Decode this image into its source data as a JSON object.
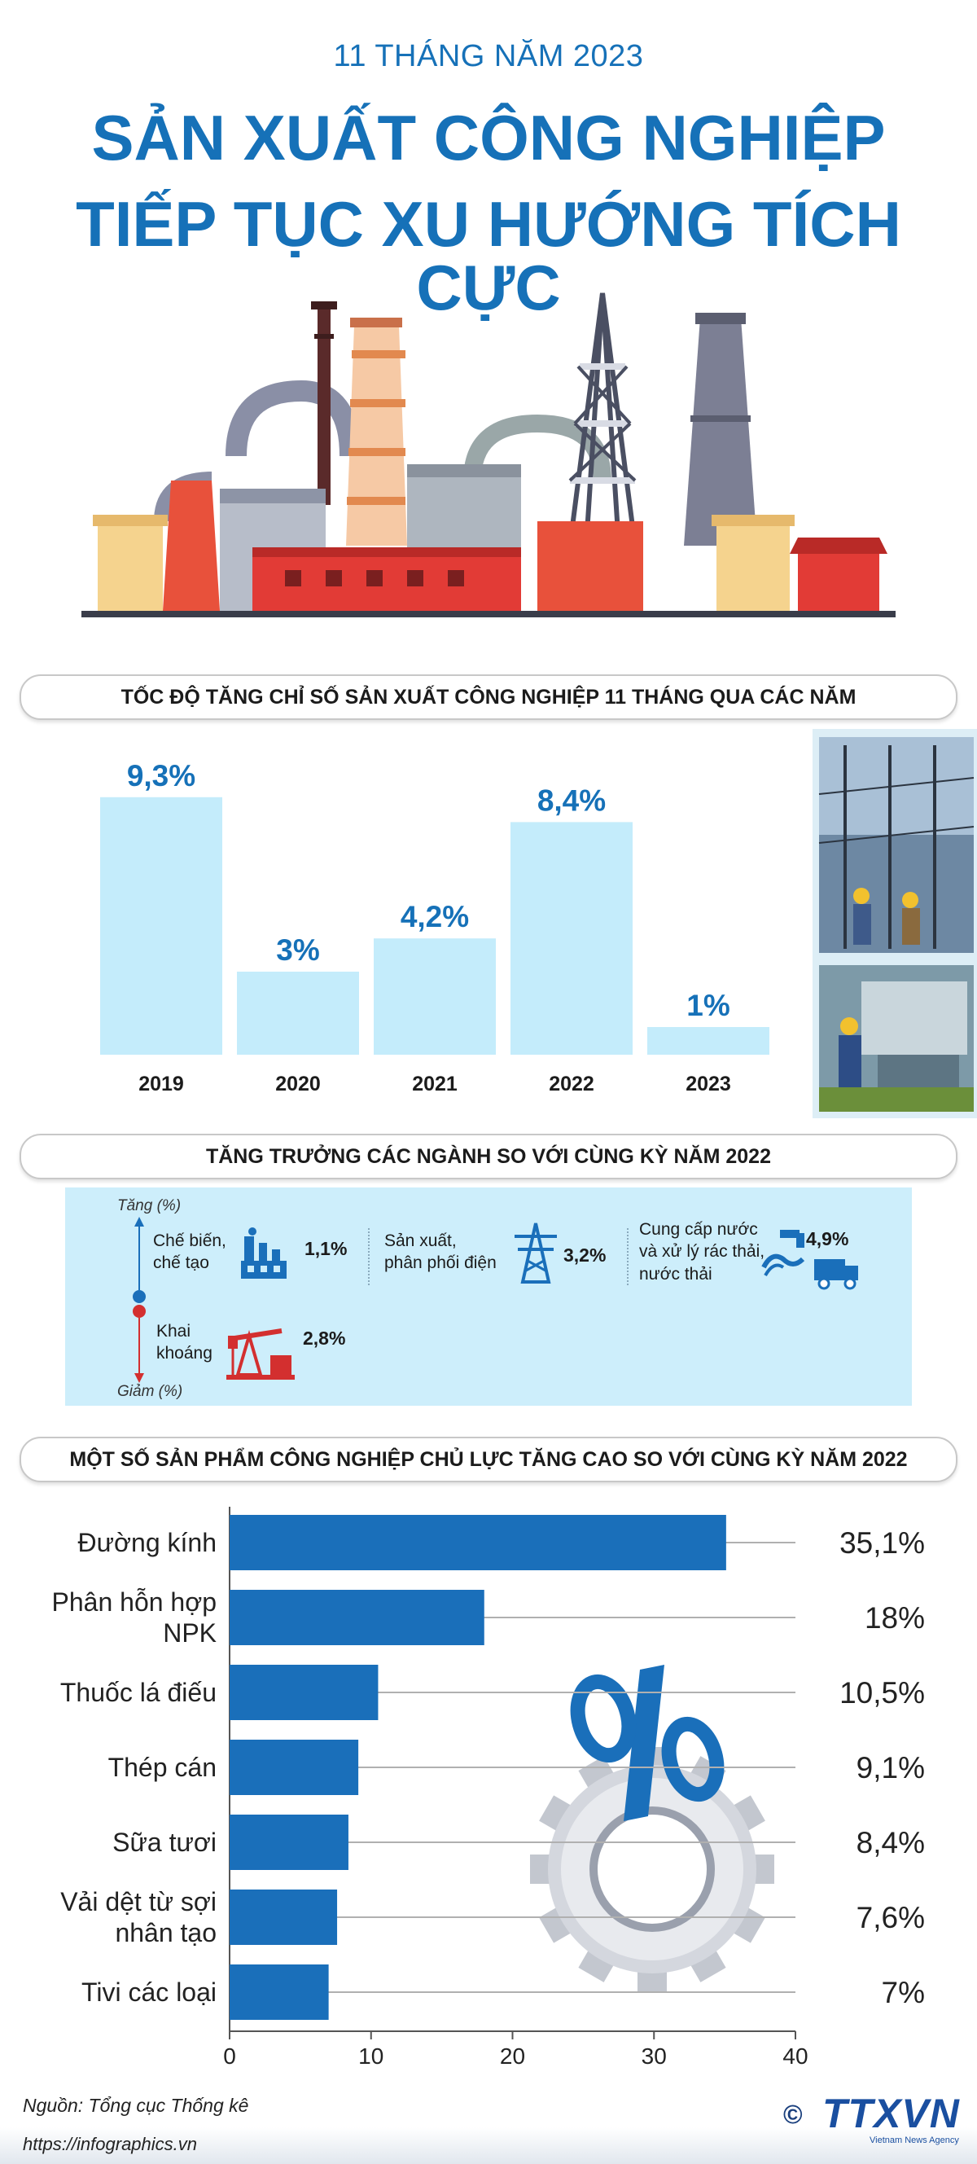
{
  "header": {
    "kicker": "11 THÁNG NĂM 2023",
    "title_line1": "SẢN XUẤT CÔNG NGHIỆP",
    "title_line2": "TIẾP TỤC XU HƯỚNG TÍCH CỰC"
  },
  "section1": {
    "title": "TỐC ĐỘ TĂNG CHỈ SỐ SẢN XUẤT CÔNG NGHIỆP 11 THÁNG QUA CÁC NĂM"
  },
  "section2": {
    "title": "TĂNG TRƯỞNG CÁC NGÀNH SO VỚI CÙNG KỲ NĂM 2022",
    "up_label": "Tăng (%)",
    "down_label": "Giảm (%)",
    "sectors": [
      {
        "name_line1": "Chế biến,",
        "name_line2": "chế tạo",
        "value": "1,1%",
        "icon": "factory-icon"
      },
      {
        "name_line1": "Sản xuất,",
        "name_line2": "phân phối điện",
        "value": "3,2%",
        "icon": "power-tower-icon"
      },
      {
        "name_line1": "Cung cấp nước",
        "name_line2": "và xử lý rác thải,",
        "name_line3": "nước thải",
        "value": "4,9%",
        "icon": "water-truck-icon"
      },
      {
        "name_line1": "Khai",
        "name_line2": "khoáng",
        "value": "2,8%",
        "icon": "oil-pump-icon"
      }
    ]
  },
  "section3": {
    "title": "MỘT SỐ SẢN PHẨM CÔNG NGHIỆP CHỦ LỰC TĂNG CAO SO VỚI CÙNG KỲ NĂM 2022"
  },
  "chart_data": [
    {
      "type": "bar",
      "title": "TỐC ĐỘ TĂNG CHỈ SỐ SẢN XUẤT CÔNG NGHIỆP 11 THÁNG QUA CÁC NĂM",
      "categories": [
        "2019",
        "2020",
        "2021",
        "2022",
        "2023"
      ],
      "values": [
        9.3,
        3,
        4.2,
        8.4,
        1
      ],
      "labels": [
        "9,3%",
        "3%",
        "4,2%",
        "8,4%",
        "1%"
      ],
      "ylim": [
        0,
        10
      ]
    },
    {
      "type": "bar",
      "orientation": "horizontal",
      "title": "MỘT SỐ SẢN PHẨM CÔNG NGHIỆP CHỦ LỰC TĂNG CAO SO VỚI CÙNG KỲ NĂM 2022",
      "categories": [
        [
          "Đường kính"
        ],
        [
          "Phân hỗn hợp",
          "NPK"
        ],
        [
          "Thuốc lá điếu"
        ],
        [
          "Thép cán"
        ],
        [
          "Sữa tươi"
        ],
        [
          "Vải dệt từ sợi",
          "nhân tạo"
        ],
        [
          "Tivi các loại"
        ]
      ],
      "values": [
        35.1,
        18,
        10.5,
        9.1,
        8.4,
        7.6,
        7
      ],
      "labels": [
        "35,1%",
        "18%",
        "10,5%",
        "9,1%",
        "8,4%",
        "7,6%",
        "7%"
      ],
      "xticks": [
        "0",
        "10",
        "20",
        "30",
        "40"
      ],
      "xlim": [
        0,
        40
      ]
    }
  ],
  "colors": {
    "brand": "#1671b8",
    "bar_light": "#c4ecfb",
    "bar_dark": "#1a6fba",
    "down": "#d32f2f"
  },
  "footer": {
    "source": "Nguồn: Tổng cục Thống kê",
    "url": "https://infographics.vn",
    "copyright": "©",
    "logo": "TTXVN",
    "logo_sub": "Vietnam News Agency"
  }
}
